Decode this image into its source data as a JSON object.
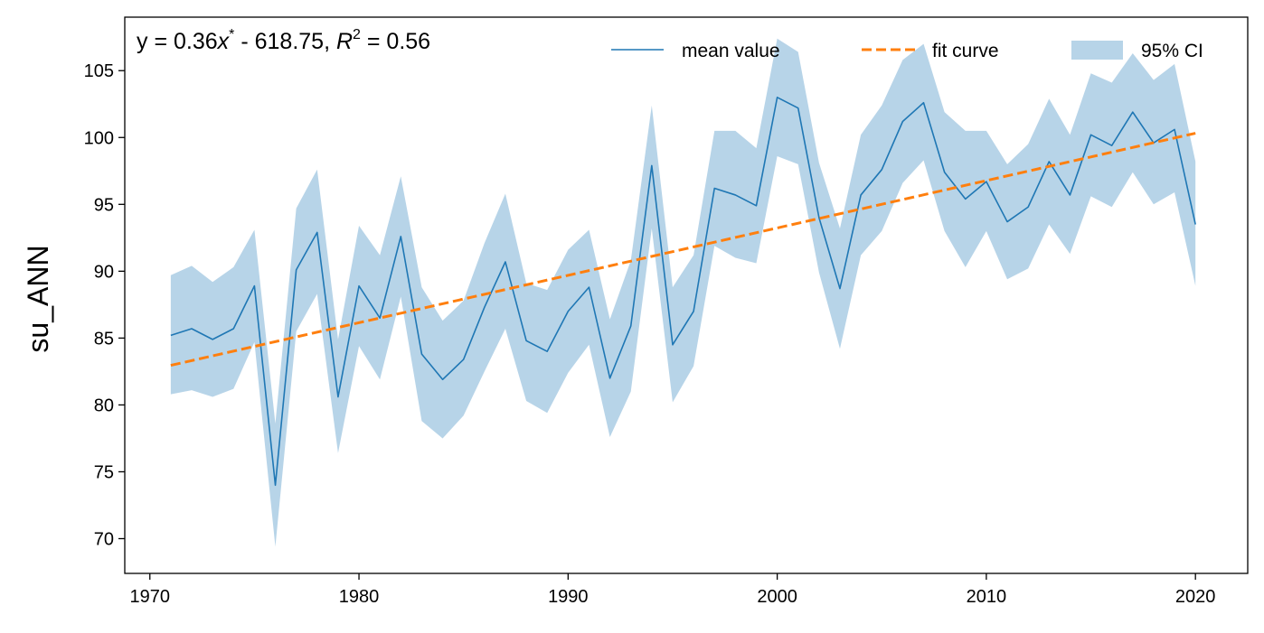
{
  "chart_data": {
    "type": "line",
    "title": "",
    "xlabel": "",
    "ylabel": "su_ANN",
    "xlim": [
      1968.8,
      2022.5
    ],
    "ylim": [
      67.4,
      109.0
    ],
    "xticks": [
      1970,
      1980,
      1990,
      2000,
      2010,
      2020
    ],
    "yticks": [
      70,
      75,
      80,
      85,
      90,
      95,
      100,
      105
    ],
    "grid": false,
    "legend_position": "top-right",
    "annotation": {
      "prefix": "y = 0.36",
      "var": "x",
      "star": "*",
      "middle": " - 618.75, ",
      "r": "R",
      "r_exp": "2",
      "suffix": " = 0.56"
    },
    "x": [
      1971,
      1972,
      1973,
      1974,
      1975,
      1976,
      1977,
      1978,
      1979,
      1980,
      1981,
      1982,
      1983,
      1984,
      1985,
      1986,
      1987,
      1988,
      1989,
      1990,
      1991,
      1992,
      1993,
      1994,
      1995,
      1996,
      1997,
      1998,
      1999,
      2000,
      2001,
      2002,
      2003,
      2004,
      2005,
      2006,
      2007,
      2008,
      2009,
      2010,
      2011,
      2012,
      2013,
      2014,
      2015,
      2016,
      2017,
      2018,
      2019,
      2020
    ],
    "series": [
      {
        "name": "mean value",
        "color": "#1f77b4",
        "values": [
          85.2,
          85.7,
          84.9,
          85.7,
          88.9,
          74.0,
          90.1,
          92.9,
          80.6,
          88.9,
          86.5,
          92.6,
          83.8,
          81.9,
          83.4,
          87.3,
          90.7,
          84.8,
          84.0,
          87.0,
          88.8,
          82.0,
          85.9,
          97.9,
          84.5,
          87.0,
          96.2,
          95.7,
          94.9,
          103.0,
          102.2,
          94.0,
          88.7,
          95.7,
          97.6,
          101.2,
          102.6,
          97.4,
          95.4,
          96.7,
          93.7,
          94.8,
          98.2,
          95.7,
          100.2,
          99.4,
          101.9,
          99.6,
          100.6,
          93.5
        ]
      },
      {
        "name": "fit curve",
        "color": "#ff7f0e",
        "style": "dashed",
        "x": [
          1971,
          2020
        ],
        "values": [
          82.96,
          100.32
        ]
      },
      {
        "name": "95% CI",
        "color": "#9bc3df",
        "lower": [
          80.8,
          81.1,
          80.6,
          81.2,
          84.7,
          69.4,
          85.5,
          88.3,
          76.4,
          84.4,
          81.9,
          88.1,
          78.8,
          77.5,
          79.2,
          82.5,
          85.7,
          80.3,
          79.4,
          82.4,
          84.5,
          77.6,
          81.0,
          93.2,
          80.2,
          82.9,
          91.9,
          91.0,
          90.6,
          98.6,
          98.0,
          89.9,
          84.2,
          91.2,
          93.0,
          96.6,
          98.3,
          93.0,
          90.3,
          93.0,
          89.4,
          90.2,
          93.5,
          91.3,
          95.6,
          94.8,
          97.4,
          95.0,
          95.9,
          88.9
        ],
        "upper": [
          89.7,
          90.4,
          89.2,
          90.3,
          93.1,
          78.6,
          94.7,
          97.6,
          84.9,
          93.4,
          91.2,
          97.1,
          88.8,
          86.3,
          87.8,
          92.1,
          95.8,
          89.1,
          88.6,
          91.6,
          93.1,
          86.4,
          90.8,
          102.4,
          88.8,
          91.2,
          100.5,
          100.5,
          99.2,
          107.4,
          106.4,
          98.1,
          93.2,
          100.2,
          102.4,
          105.8,
          107.0,
          101.9,
          100.5,
          100.5,
          98.0,
          99.5,
          102.9,
          100.2,
          104.8,
          104.1,
          106.3,
          104.3,
          105.5,
          98.2
        ]
      }
    ]
  }
}
